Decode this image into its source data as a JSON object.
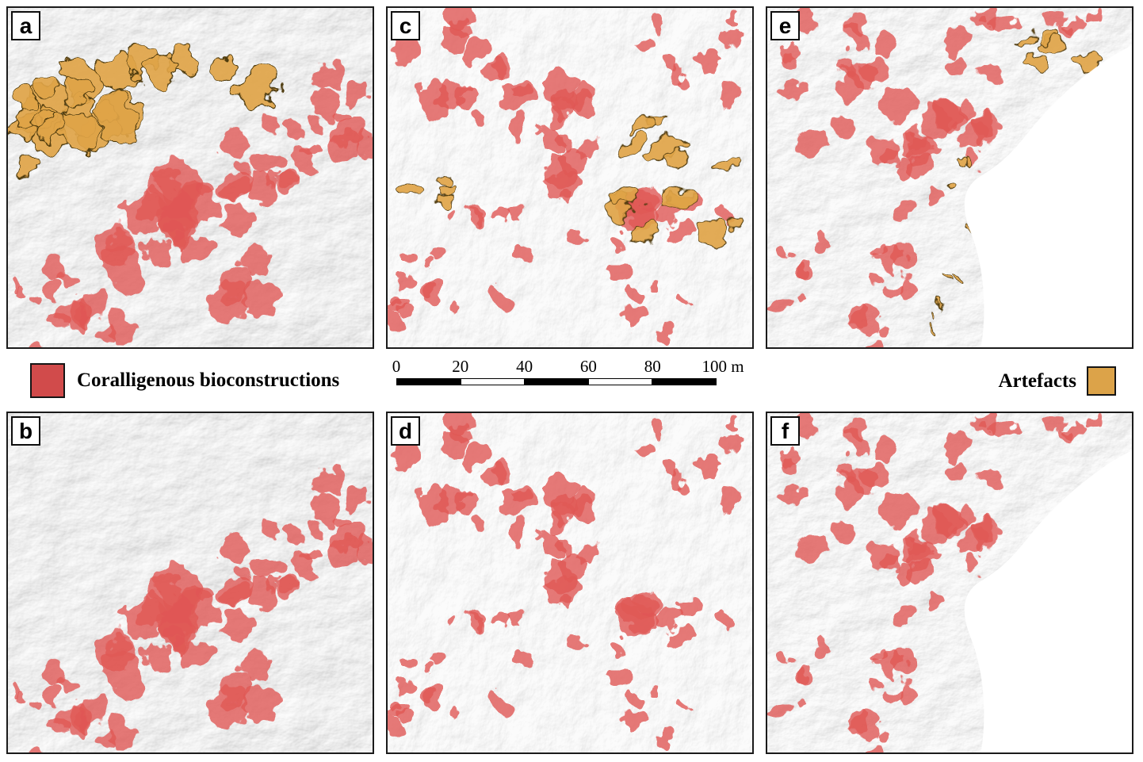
{
  "figure": {
    "panels": [
      {
        "id": "a",
        "label": "a",
        "column": 0,
        "has_artefacts": true,
        "has_cutout": false
      },
      {
        "id": "c",
        "label": "c",
        "column": 1,
        "has_artefacts": true,
        "has_cutout": false
      },
      {
        "id": "e",
        "label": "e",
        "column": 2,
        "has_artefacts": true,
        "has_cutout": true
      },
      {
        "id": "b",
        "label": "b",
        "column": 0,
        "has_artefacts": false,
        "has_cutout": false
      },
      {
        "id": "d",
        "label": "d",
        "column": 1,
        "has_artefacts": false,
        "has_cutout": false
      },
      {
        "id": "f",
        "label": "f",
        "column": 2,
        "has_artefacts": false,
        "has_cutout": true
      }
    ],
    "legend": {
      "coralligenous_label": "Coralligenous bioconstructions",
      "coralligenous_color": "#d14b4b",
      "artefacts_label": "Artefacts",
      "artefacts_color": "#dca349"
    },
    "map_colors": {
      "coralligenous_fill": "#e05755",
      "artefacts_fill": "#e0a447",
      "artefacts_outline": "#4e3a10",
      "nodata_fill": "#ffffff"
    },
    "scalebar": {
      "ticks": [
        "0",
        "20",
        "40",
        "60",
        "80"
      ],
      "end_label": "100 m"
    }
  }
}
